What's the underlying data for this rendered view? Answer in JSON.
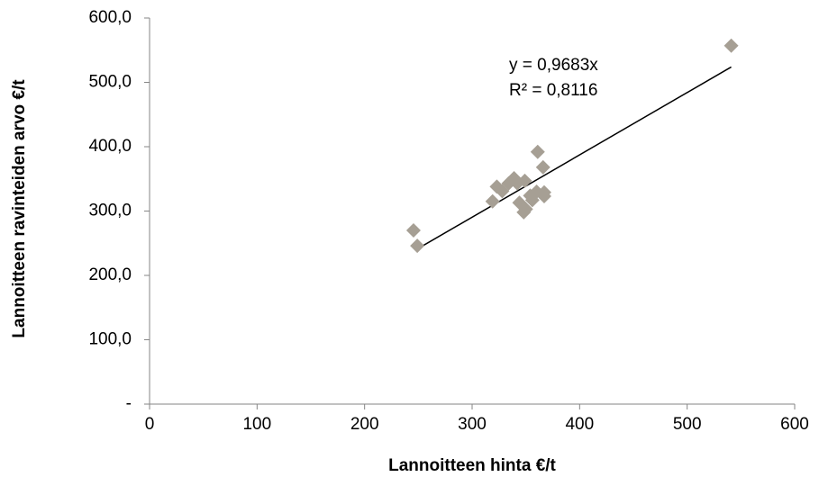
{
  "chart_data": {
    "type": "scatter",
    "x_label": "Lannoitteen hinta  €/t",
    "y_label": "Lannoitteen ravinteiden arvo  €/t",
    "x": [
      245.5,
      249,
      319,
      323,
      328,
      334,
      339,
      342,
      349,
      344,
      350,
      348,
      356,
      360,
      361,
      366,
      367,
      367,
      354,
      541
    ],
    "values": [
      270,
      246,
      315,
      338,
      331,
      343,
      351,
      343,
      347,
      313,
      303,
      298,
      317,
      330,
      392,
      368,
      329,
      323,
      324,
      557
    ],
    "color": "#a69f94",
    "xlim": [
      0,
      600
    ],
    "xticks": [
      0,
      100,
      200,
      300,
      400,
      500,
      600
    ],
    "ylim": [
      0,
      600
    ],
    "yticks": [
      {
        "value": 0,
        "label": "-"
      },
      {
        "value": 100,
        "label": "100,0"
      },
      {
        "value": 200,
        "label": "200,0"
      },
      {
        "value": 300,
        "label": "300,0"
      },
      {
        "value": 400,
        "label": "400,0"
      },
      {
        "value": 500,
        "label": "500,0"
      },
      {
        "value": 600,
        "label": "600,0"
      }
    ],
    "trendline": {
      "slope": 0.9683,
      "x": [
        248,
        541
      ],
      "color": "#000000"
    },
    "annotations": [
      "y = 0,9683x",
      "R² = 0,8116"
    ],
    "grid": false
  }
}
